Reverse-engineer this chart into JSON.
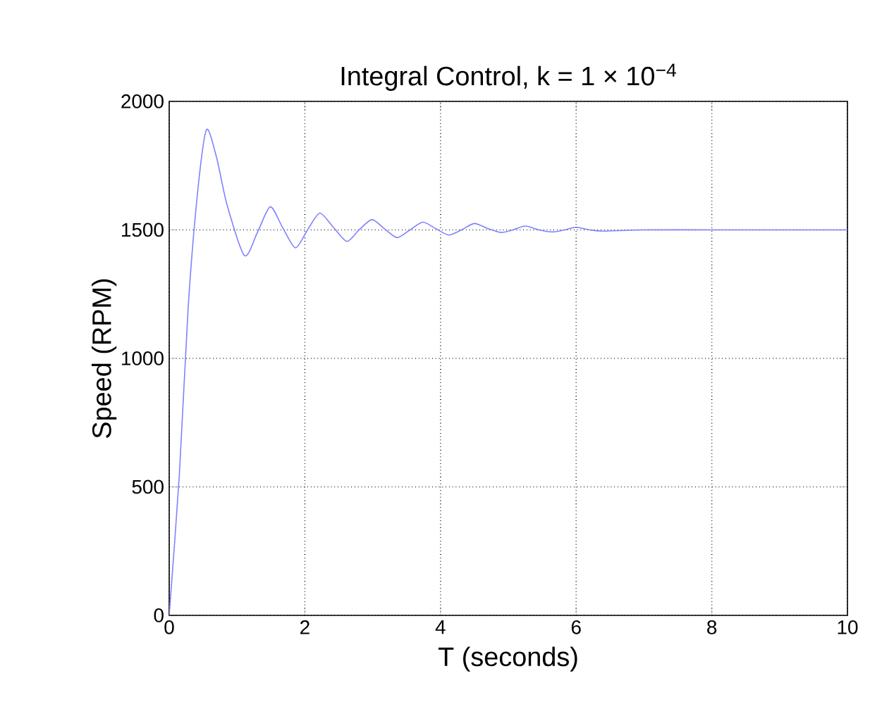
{
  "chart_data": {
    "type": "line",
    "title": "Integral Control, k = 1 × 10$^{−4}$",
    "xlabel": "T (seconds)",
    "ylabel": "Speed (RPM)",
    "x": [
      0,
      0.15,
      0.28,
      0.42,
      0.55,
      0.7,
      0.85,
      1.11,
      1.3,
      1.49,
      1.67,
      1.86,
      2.04,
      2.22,
      2.42,
      2.62,
      2.8,
      2.99,
      3.17,
      3.36,
      3.55,
      3.74,
      3.93,
      4.12,
      4.31,
      4.5,
      4.7,
      4.89,
      5.07,
      5.25,
      5.45,
      5.65,
      5.83,
      6.0,
      6.2,
      6.4,
      7,
      8,
      9,
      10
    ],
    "series": [
      {
        "color": "#8080ff",
        "values": [
          0,
          550,
          1200,
          1650,
          1890,
          1780,
          1600,
          1400,
          1490,
          1590,
          1510,
          1430,
          1500,
          1565,
          1510,
          1455,
          1500,
          1540,
          1505,
          1470,
          1500,
          1530,
          1505,
          1480,
          1500,
          1525,
          1505,
          1490,
          1500,
          1515,
          1500,
          1492,
          1500,
          1510,
          1500,
          1495,
          1500,
          1500,
          1500,
          1500
        ]
      }
    ],
    "xlim": [
      0,
      10
    ],
    "ylim": [
      0,
      2000
    ],
    "xticks": [
      0,
      2,
      4,
      6,
      8,
      10
    ],
    "yticks": [
      0,
      500,
      1000,
      1500,
      2000
    ],
    "grid": true,
    "line_style": "solid",
    "marker": "none"
  }
}
